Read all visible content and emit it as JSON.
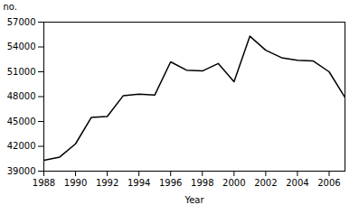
{
  "chart_data": {
    "type": "line",
    "x": [
      1988,
      1989,
      1990,
      1991,
      1992,
      1993,
      1994,
      1995,
      1996,
      1997,
      1998,
      1999,
      2000,
      2001,
      2002,
      2003,
      2004,
      2005,
      2006,
      2007
    ],
    "values": [
      40300,
      40700,
      42300,
      45500,
      45600,
      48100,
      48300,
      48200,
      52200,
      51200,
      51100,
      52000,
      49800,
      55300,
      53600,
      52700,
      52400,
      52300,
      51000,
      47900
    ],
    "xlabel": "Year",
    "ylabel": "no.",
    "xlim": [
      1988,
      2007
    ],
    "ylim": [
      39000,
      57000
    ],
    "xticks": [
      1988,
      1990,
      1992,
      1994,
      1996,
      1998,
      2000,
      2002,
      2004,
      2006
    ],
    "yticks": [
      39000,
      42000,
      45000,
      48000,
      51000,
      54000,
      57000
    ],
    "color": "#000000",
    "grid": false
  }
}
